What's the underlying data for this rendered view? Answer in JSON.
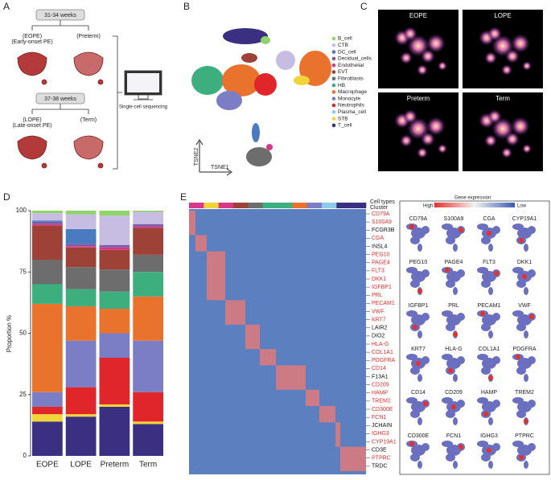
{
  "panels": [
    "A",
    "B",
    "C",
    "D",
    "E"
  ],
  "panel_a": {
    "group1": "31-34 weeks",
    "eope": "(EOPE)",
    "eope_full": "(Early-onset PE)",
    "preterm": "(Preterm)",
    "group2": "37-38 weeks",
    "lope": "(LOPE)",
    "lope_full": "(Late-onset PE)",
    "term": "(Term)",
    "method": "Single-cell sequencing"
  },
  "panel_b": {
    "y_label": "TSNE2",
    "x_label": "TSNE1"
  },
  "panel_c": {
    "titles": [
      "EOPE",
      "LOPE",
      "Preterm",
      "Term"
    ]
  },
  "chart_data": {
    "type": "stacked_bar",
    "y_label": "Proportion %",
    "categories": [
      "EOPE",
      "LOPE",
      "Preterm",
      "Term"
    ],
    "ylim": [
      0,
      100
    ],
    "yticks": [
      0,
      25,
      50,
      75,
      100
    ],
    "series": [
      {
        "name": "B_cell",
        "color": "#8fd46b",
        "values": [
          1,
          1.5,
          2,
          0.5
        ]
      },
      {
        "name": "CTB",
        "color": "#c7bde2",
        "values": [
          3,
          6,
          12,
          5
        ]
      },
      {
        "name": "DC_cell",
        "color": "#4a7bc0",
        "values": [
          0.5,
          6,
          0,
          0
        ]
      },
      {
        "name": "Decidual_cells",
        "color": "#7d5aa8",
        "values": [
          1,
          1,
          1,
          1
        ]
      },
      {
        "name": "Endothelial",
        "color": "#d8388a",
        "values": [
          0.5,
          0.5,
          1,
          0.5
        ]
      },
      {
        "name": "EVT",
        "color": "#9e4238",
        "values": [
          14,
          8,
          8,
          11
        ]
      },
      {
        "name": "Fibroblasts",
        "color": "#6d6d6d",
        "values": [
          10,
          9,
          9,
          7
        ]
      },
      {
        "name": "HB",
        "color": "#3daf7e",
        "values": [
          8,
          7,
          7,
          10
        ]
      },
      {
        "name": "Macrophage",
        "color": "#e9722d",
        "values": [
          36,
          14,
          10,
          18
        ]
      },
      {
        "name": "Monocyte",
        "color": "#7b7ec4",
        "values": [
          6,
          19,
          10,
          21
        ]
      },
      {
        "name": "Neutrophils",
        "color": "#e0262b",
        "values": [
          3,
          11,
          19,
          12
        ]
      },
      {
        "name": "Plasma_cell",
        "color": "#8fcbe9",
        "values": [
          0,
          0,
          0,
          0
        ]
      },
      {
        "name": "STB",
        "color": "#f1d43a",
        "values": [
          3,
          1,
          1,
          1
        ]
      },
      {
        "name": "T_cell",
        "color": "#3a2f80",
        "values": [
          14,
          16,
          20,
          13
        ]
      }
    ]
  },
  "panel_e": {
    "cell_types": "Cell types",
    "cluster": "Cluster",
    "legend_title": "Gene expression",
    "high": "High",
    "low": "Low",
    "genes": [
      {
        "name": "CD79A",
        "color": "#e8302a"
      },
      {
        "name": "S100A9",
        "color": "#e8302a"
      },
      {
        "name": "FCGR3B",
        "color": "#111111"
      },
      {
        "name": "CGA",
        "color": "#e8302a"
      },
      {
        "name": "INSL4",
        "color": "#111111"
      },
      {
        "name": "PEG10",
        "color": "#e8302a"
      },
      {
        "name": "PAGE4",
        "color": "#e8302a"
      },
      {
        "name": "FLT3",
        "color": "#e8302a"
      },
      {
        "name": "DKK1",
        "color": "#e8302a"
      },
      {
        "name": "IGFBP1",
        "color": "#e8302a"
      },
      {
        "name": "PRL",
        "color": "#e8302a"
      },
      {
        "name": "PECAM1",
        "color": "#e8302a"
      },
      {
        "name": "VWF",
        "color": "#e8302a"
      },
      {
        "name": "KRT7",
        "color": "#e8302a"
      },
      {
        "name": "LAIR2",
        "color": "#111111"
      },
      {
        "name": "DIO2",
        "color": "#111111"
      },
      {
        "name": "HLA-G",
        "color": "#e8302a"
      },
      {
        "name": "COL1A1",
        "color": "#e8302a"
      },
      {
        "name": "PDGFRA",
        "color": "#e8302a"
      },
      {
        "name": "CD14",
        "color": "#e8302a"
      },
      {
        "name": "F13A1",
        "color": "#111111"
      },
      {
        "name": "CD209",
        "color": "#e8302a"
      },
      {
        "name": "HAMP",
        "color": "#e8302a"
      },
      {
        "name": "TREM2",
        "color": "#e8302a"
      },
      {
        "name": "CD300E",
        "color": "#e8302a"
      },
      {
        "name": "FCN1",
        "color": "#e8302a"
      },
      {
        "name": "JCHAIN",
        "color": "#111111"
      },
      {
        "name": "IGHG3",
        "color": "#e8302a"
      },
      {
        "name": "CYP19A1",
        "color": "#e8302a"
      },
      {
        "name": "CD3E",
        "color": "#111111"
      },
      {
        "name": "PTPRC",
        "color": "#e8302a"
      },
      {
        "name": "TRDC",
        "color": "#111111"
      }
    ],
    "feature_plots": [
      "CD79A",
      "S100A9",
      "CGA",
      "CYP19A1",
      "PEG10",
      "PAGE4",
      "FLT3",
      "DKK1",
      "IGFBP1",
      "PRL",
      "PECAM1",
      "VWF",
      "KRT7",
      "HLA-G",
      "COL1A1",
      "PDGFRA",
      "CD14",
      "CD209",
      "HAMP",
      "TREM2",
      "CD300E",
      "FCN1",
      "IGHG3",
      "PTPRC"
    ]
  }
}
